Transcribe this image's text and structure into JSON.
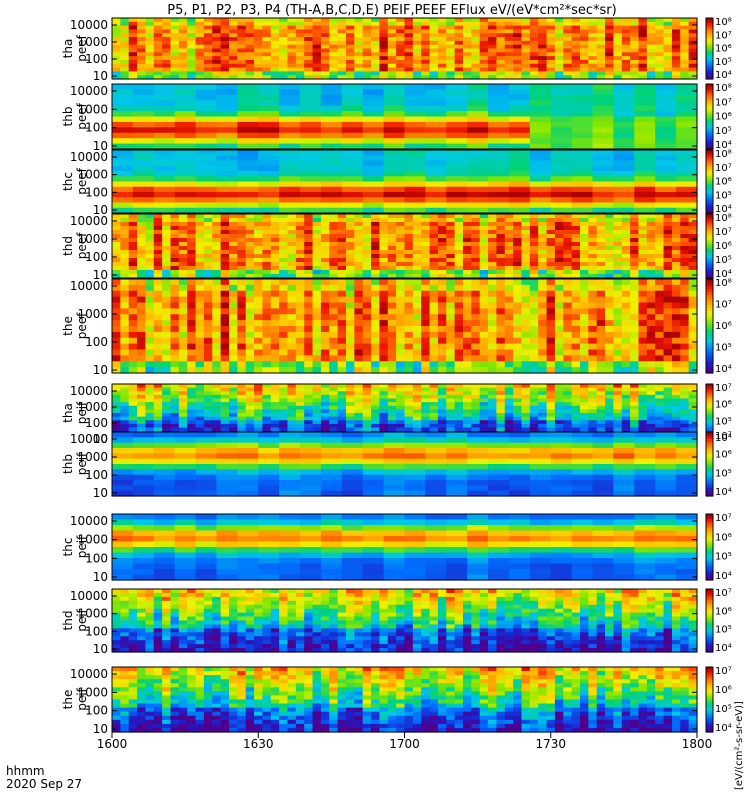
{
  "title": "P5, P1, P2, P3, P4 (TH-A,B,C,D,E) PEIF,PEEF EFlux eV/(eV*cm²*sec*sr)",
  "time_axis": {
    "label_line1": "hhmm",
    "label_line2": "2020 Sep 27",
    "ticks": [
      "1600",
      "1630",
      "1700",
      "1730",
      "1800"
    ]
  },
  "colorbar_unit": "[eV/(cm²-s-sr-eV)]",
  "chart_data": [
    {
      "type": "heatmap",
      "ylabel": "tha peef",
      "yticks": [
        "10",
        "100",
        "1000",
        "10000"
      ],
      "colorbar_ticks": [
        "10⁴",
        "10⁵",
        "10⁶",
        "10⁷",
        "10⁸"
      ],
      "texture": "noisy",
      "base": 0.78,
      "profile": "flat",
      "notes": "high flux across all energies"
    },
    {
      "type": "heatmap",
      "ylabel": "thb peef",
      "yticks": [
        "10",
        "100",
        "1000",
        "10000"
      ],
      "colorbar_ticks": [
        "10⁴",
        "10⁵",
        "10⁶",
        "10⁷",
        "10⁸"
      ],
      "texture": "blocky",
      "base": 0.55,
      "profile": "peak-low",
      "transition_time": "1727"
    },
    {
      "type": "heatmap",
      "ylabel": "thc peef",
      "yticks": [
        "10",
        "100",
        "1000",
        "10000"
      ],
      "colorbar_ticks": [
        "10⁴",
        "10⁵",
        "10⁶",
        "10⁷",
        "10⁸"
      ],
      "texture": "blocky",
      "base": 0.6,
      "profile": "peak-low"
    },
    {
      "type": "heatmap",
      "ylabel": "thd peef",
      "yticks": [
        "10",
        "100",
        "1000",
        "10000"
      ],
      "colorbar_ticks": [
        "10⁴",
        "10⁵",
        "10⁶",
        "10⁷",
        "10⁸"
      ],
      "texture": "noisy",
      "base": 0.78,
      "profile": "flat"
    },
    {
      "type": "heatmap",
      "ylabel": "the peef",
      "yticks": [
        "10",
        "100",
        "1000",
        "10000"
      ],
      "colorbar_ticks": [
        "10⁴",
        "10⁵",
        "10⁶",
        "10⁷",
        "10⁸"
      ],
      "texture": "noisy",
      "base": 0.78,
      "profile": "flat"
    },
    {
      "type": "heatmap",
      "ylabel": "tha peif",
      "yticks": [
        "10",
        "100",
        "1000",
        "10000"
      ],
      "colorbar_ticks": [
        "10⁴",
        "10⁵",
        "10⁶",
        "10⁷"
      ],
      "texture": "noisy",
      "base": 0.45,
      "profile": "rise-high"
    },
    {
      "type": "heatmap",
      "ylabel": "thb peif",
      "yticks": [
        "10",
        "100",
        "1000",
        "10000"
      ],
      "colorbar_ticks": [
        "10⁴",
        "10⁵",
        "10⁶",
        "10⁷"
      ],
      "texture": "blocky",
      "base": 0.55,
      "profile": "peak-mid"
    },
    {
      "type": "heatmap",
      "ylabel": "thc peif",
      "yticks": [
        "10",
        "100",
        "1000",
        "10000"
      ],
      "colorbar_ticks": [
        "10⁴",
        "10⁵",
        "10⁶",
        "10⁷"
      ],
      "texture": "blocky",
      "base": 0.55,
      "profile": "peak-mid"
    },
    {
      "type": "heatmap",
      "ylabel": "thd peif",
      "yticks": [
        "10",
        "100",
        "1000",
        "10000"
      ],
      "colorbar_ticks": [
        "10⁴",
        "10⁵",
        "10⁶",
        "10⁷"
      ],
      "texture": "noisy",
      "base": 0.5,
      "profile": "rise-high"
    },
    {
      "type": "heatmap",
      "ylabel": "the peif",
      "yticks": [
        "10",
        "100",
        "1000",
        "10000"
      ],
      "colorbar_ticks": [
        "10⁴",
        "10⁵",
        "10⁶",
        "10⁷"
      ],
      "texture": "noisy",
      "base": 0.45,
      "profile": "rise-high"
    }
  ]
}
